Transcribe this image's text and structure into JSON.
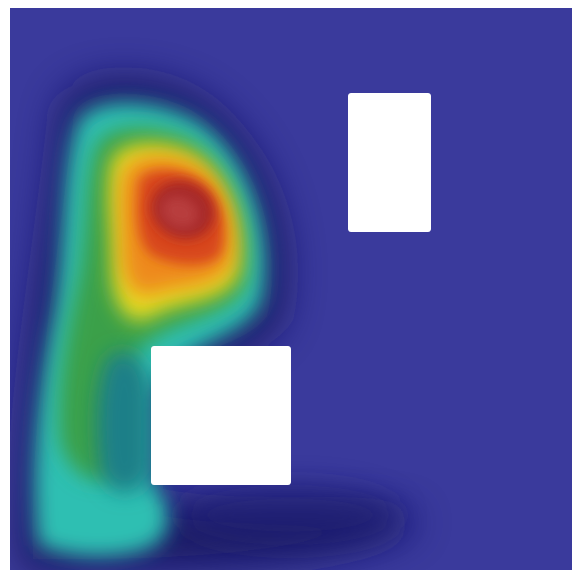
{
  "scene": {
    "description_visible_text": "",
    "colormap": {
      "background_low": "#3a3a9c",
      "stops": [
        "#0d0d55",
        "#1f1f8a",
        "#2a8fa0",
        "#33c4b8",
        "#46a24a",
        "#2f8a2f",
        "#9bbd2a",
        "#f2e21c",
        "#f08a1a",
        "#d8471a",
        "#a52222",
        "#b53a3a"
      ]
    },
    "obstacles_color": "#ffffff",
    "frame_color": "#ffffff"
  }
}
